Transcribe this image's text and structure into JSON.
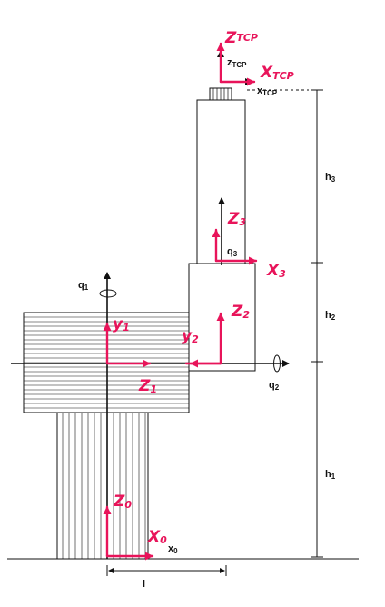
{
  "printed_labels": {
    "z_tcp": "z",
    "z_tcp_sub": "TCP",
    "x_tcp": "x",
    "x_tcp_sub": "TCP",
    "h3": "h",
    "h3_sub": "3",
    "h2": "h",
    "h2_sub": "2",
    "h1": "h",
    "h1_sub": "1",
    "q1": "q",
    "q1_sub": "1",
    "q2": "q",
    "q2_sub": "2",
    "q3": "q",
    "q3_sub": "3",
    "x0": "x",
    "x0_sub": "0",
    "l": "l"
  },
  "handwritten_labels": {
    "z_tcp": "Z",
    "z_tcp_sub": "TCP",
    "x_tcp": "X",
    "x_tcp_sub": "TCP",
    "z3": "Z",
    "z3_sub": "3",
    "x3": "X",
    "x3_sub": "3",
    "z2": "Z",
    "z2_sub": "2",
    "y2": "y",
    "y2_sub": "2",
    "y1": "y",
    "y1_sub": "1",
    "z1": "Z",
    "z1_sub": "1",
    "z0": "Z",
    "z0_sub": "0",
    "x0": "X",
    "x0_sub": "0"
  },
  "colors": {
    "ink": "#111111",
    "annotation": "#e8145a"
  }
}
